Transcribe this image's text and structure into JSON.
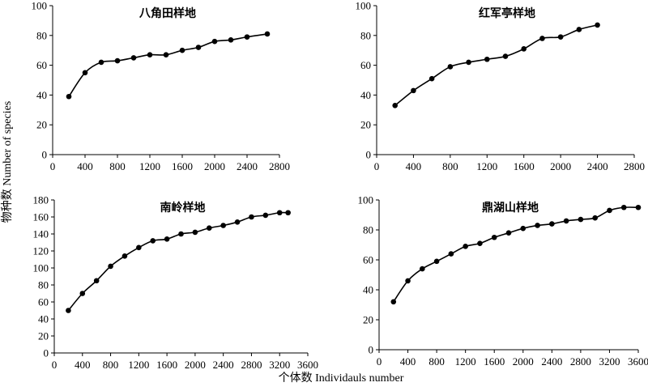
{
  "figure": {
    "ylabel": "物种数 Number of species",
    "xlabel": "个体数 Individauls number"
  },
  "chart_data": [
    {
      "type": "line",
      "title": "八角田样地",
      "xlabel": "",
      "ylabel": "",
      "xlim": [
        0,
        2800
      ],
      "ylim": [
        0,
        100
      ],
      "xticks": [
        0,
        400,
        800,
        1200,
        1600,
        2000,
        2400,
        2800
      ],
      "yticks": [
        0,
        20,
        40,
        60,
        80,
        100
      ],
      "grid": false,
      "series": [
        {
          "x": [
            200,
            400,
            600,
            800,
            1000,
            1200,
            1400,
            1600,
            1800,
            2000,
            2200,
            2400,
            2650
          ],
          "y": [
            39,
            55,
            62,
            63,
            65,
            67,
            67,
            70,
            72,
            76,
            77,
            79,
            81
          ]
        }
      ]
    },
    {
      "type": "line",
      "title": "红军亭样地",
      "xlabel": "",
      "ylabel": "",
      "xlim": [
        0,
        2800
      ],
      "ylim": [
        0,
        100
      ],
      "xticks": [
        0,
        400,
        800,
        1200,
        1600,
        2000,
        2400,
        2800
      ],
      "yticks": [
        0,
        20,
        40,
        60,
        80,
        100
      ],
      "grid": false,
      "series": [
        {
          "x": [
            200,
            400,
            600,
            800,
            1000,
            1200,
            1400,
            1600,
            1800,
            2000,
            2200,
            2400
          ],
          "y": [
            33,
            43,
            51,
            59,
            62,
            64,
            66,
            71,
            78,
            79,
            84,
            87
          ]
        }
      ]
    },
    {
      "type": "line",
      "title": "南岭样地",
      "xlabel": "",
      "ylabel": "",
      "xlim": [
        0,
        3600
      ],
      "ylim": [
        0,
        180
      ],
      "xticks": [
        0,
        400,
        800,
        1200,
        1600,
        2000,
        2400,
        2800,
        3200,
        3600
      ],
      "yticks": [
        0,
        20,
        40,
        60,
        80,
        100,
        120,
        140,
        160,
        180
      ],
      "grid": false,
      "series": [
        {
          "x": [
            200,
            400,
            600,
            800,
            1000,
            1200,
            1400,
            1600,
            1800,
            2000,
            2200,
            2400,
            2600,
            2800,
            3000,
            3200,
            3320
          ],
          "y": [
            50,
            70,
            85,
            102,
            114,
            124,
            132,
            134,
            140,
            142,
            147,
            150,
            154,
            160,
            162,
            165,
            165
          ]
        }
      ]
    },
    {
      "type": "line",
      "title": "鼎湖山样地",
      "xlabel": "",
      "ylabel": "",
      "xlim": [
        0,
        3600
      ],
      "ylim": [
        0,
        100
      ],
      "xticks": [
        0,
        400,
        800,
        1200,
        1600,
        2000,
        2400,
        2800,
        3200,
        3600
      ],
      "yticks": [
        0,
        20,
        40,
        60,
        80,
        100
      ],
      "grid": false,
      "series": [
        {
          "x": [
            200,
            400,
            600,
            800,
            1000,
            1200,
            1400,
            1600,
            1800,
            2000,
            2200,
            2400,
            2600,
            2800,
            3000,
            3200,
            3400,
            3600
          ],
          "y": [
            32,
            46,
            54,
            59,
            64,
            69,
            71,
            75,
            78,
            81,
            83,
            84,
            86,
            87,
            88,
            93,
            95,
            95
          ]
        }
      ]
    }
  ]
}
